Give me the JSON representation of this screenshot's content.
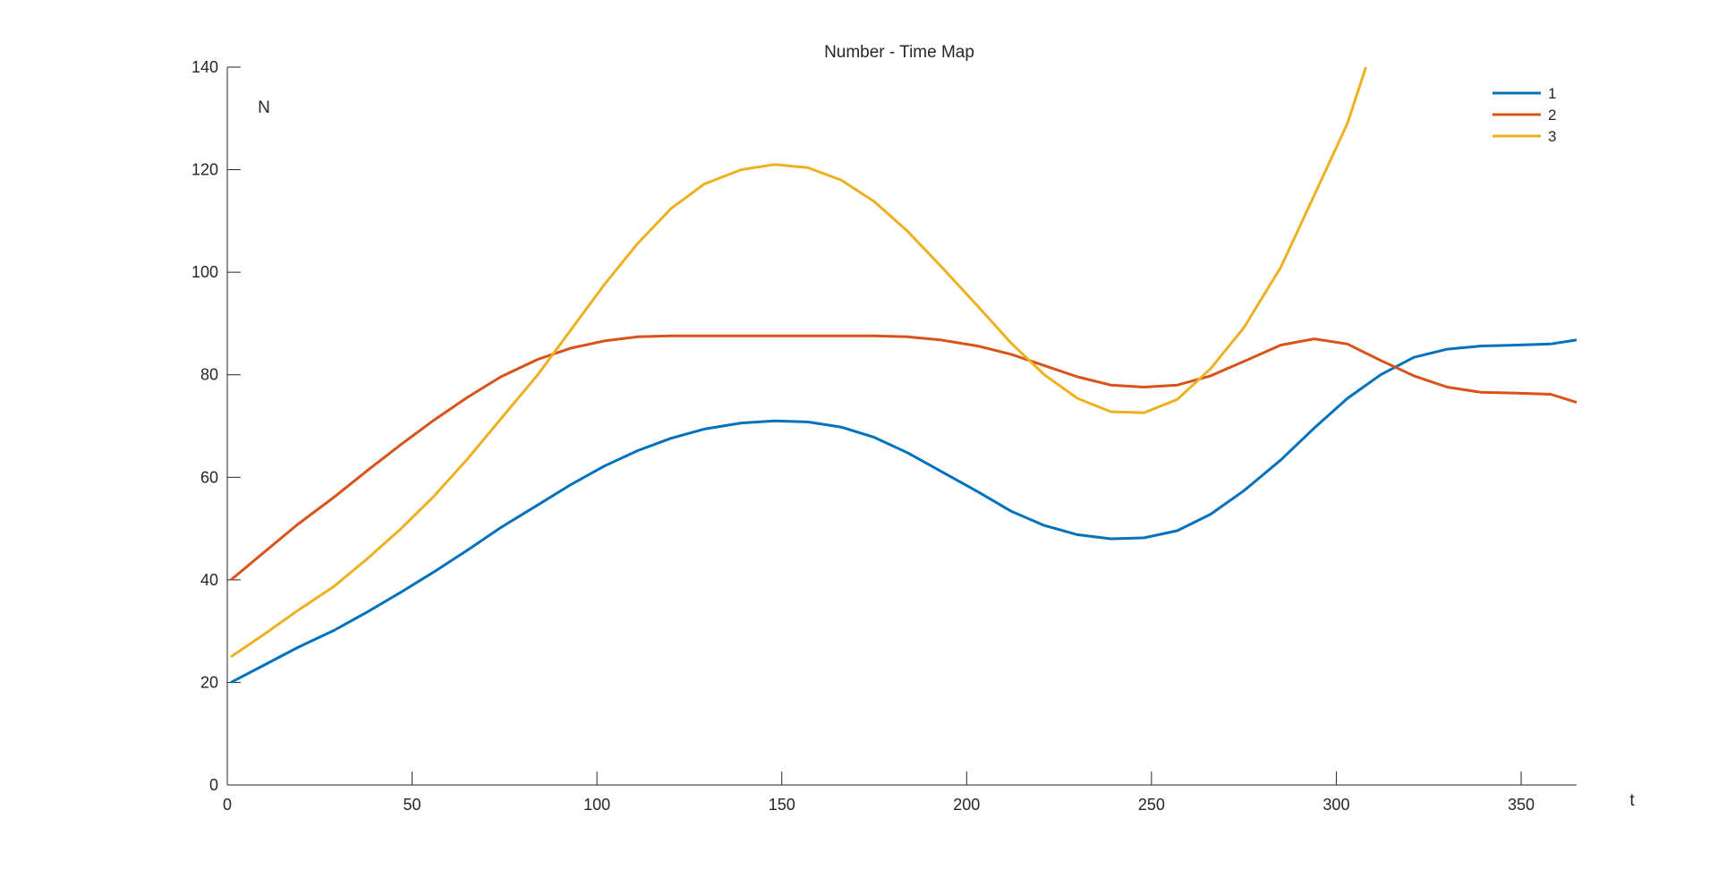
{
  "chart_data": {
    "type": "line",
    "title": "Number - Time Map",
    "xlabel": "t",
    "ylabel": "N",
    "xlim": [
      0,
      365
    ],
    "ylim": [
      0,
      140
    ],
    "xticks": [
      0,
      50,
      100,
      150,
      200,
      250,
      300,
      350
    ],
    "yticks": [
      0,
      20,
      40,
      60,
      80,
      100,
      120,
      140
    ],
    "grid": false,
    "legend_position": "top-right",
    "series": [
      {
        "name": "1",
        "color": "#0072BD",
        "x": [
          1,
          10,
          19,
          29,
          38,
          47,
          56,
          65,
          74,
          84,
          93,
          102,
          111,
          120,
          129,
          139,
          148,
          157,
          166,
          175,
          184,
          193,
          203,
          212,
          221,
          230,
          239,
          248,
          257,
          266,
          275,
          285,
          294,
          303,
          312,
          321,
          330,
          339,
          349,
          358,
          365
        ],
        "y": [
          20,
          23.4,
          26.8,
          30.2,
          33.8,
          37.6,
          41.6,
          45.8,
          50.2,
          54.6,
          58.6,
          62.2,
          65.2,
          67.6,
          69.4,
          70.6,
          71.0,
          70.8,
          69.8,
          67.8,
          64.8,
          61.2,
          57.2,
          53.4,
          50.6,
          48.8,
          48.0,
          48.2,
          49.6,
          52.8,
          57.4,
          63.4,
          69.6,
          75.4,
          80.0,
          83.4,
          85.0,
          85.6,
          85.8,
          86.0,
          86.8
        ]
      },
      {
        "name": "2",
        "color": "#D95319",
        "x": [
          1,
          10,
          19,
          29,
          38,
          47,
          56,
          65,
          74,
          84,
          93,
          102,
          111,
          120,
          129,
          139,
          148,
          157,
          166,
          175,
          184,
          193,
          203,
          212,
          221,
          230,
          239,
          248,
          257,
          266,
          275,
          285,
          294,
          303,
          312,
          321,
          330,
          339,
          349,
          358,
          365
        ],
        "y": [
          40,
          45.4,
          50.8,
          56.2,
          61.4,
          66.4,
          71.2,
          75.6,
          79.6,
          83.0,
          85.2,
          86.6,
          87.4,
          87.6,
          87.6,
          87.6,
          87.6,
          87.6,
          87.6,
          87.6,
          87.4,
          86.8,
          85.6,
          84.0,
          81.8,
          79.6,
          78.0,
          77.6,
          78.0,
          79.8,
          82.6,
          85.8,
          87.0,
          86.0,
          82.8,
          79.8,
          77.6,
          76.6,
          76.4,
          76.2,
          74.6
        ]
      },
      {
        "name": "3",
        "color": "#EDB120",
        "x": [
          1,
          10,
          19,
          29,
          38,
          47,
          56,
          65,
          74,
          84,
          93,
          102,
          111,
          120,
          129,
          139,
          148,
          157,
          166,
          175,
          184,
          193,
          203,
          212,
          221,
          230,
          239,
          248,
          257,
          266,
          275,
          285,
          294,
          303,
          308
        ],
        "y": [
          25,
          29.4,
          34.0,
          38.8,
          44.2,
          50.0,
          56.4,
          63.6,
          71.4,
          80.0,
          88.8,
          97.6,
          105.6,
          112.4,
          117.2,
          120.0,
          121.0,
          120.4,
          118.0,
          113.8,
          108.0,
          101.2,
          93.4,
          86.2,
          80.0,
          75.4,
          72.8,
          72.6,
          75.2,
          81.2,
          89.2,
          101.0,
          115.0,
          129.0,
          140.0
        ]
      }
    ]
  }
}
